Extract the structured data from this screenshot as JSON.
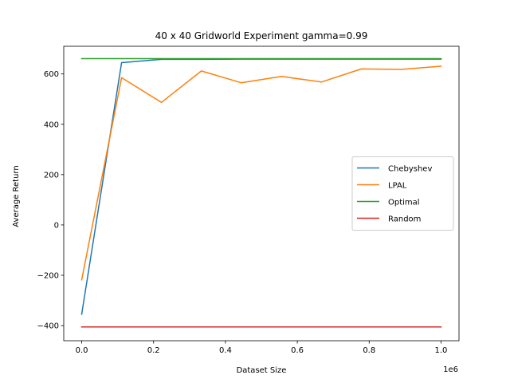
{
  "chart_data": {
    "type": "line",
    "title": "40 x 40 Gridworld Experiment gamma=0.99",
    "xlabel": "Dataset Size",
    "ylabel": "Average Return",
    "x_offset_label": "1e6",
    "xlim": [
      -0.05,
      1.05
    ],
    "ylim": [
      -460,
      710
    ],
    "x_ticks": [
      0.0,
      0.2,
      0.4,
      0.6,
      0.8,
      1.0
    ],
    "x_tick_labels": [
      "0.0",
      "0.2",
      "0.4",
      "0.6",
      "0.8",
      "1.0"
    ],
    "y_ticks": [
      -400,
      -200,
      0,
      200,
      400,
      600
    ],
    "y_tick_labels": [
      "−400",
      "−200",
      "0",
      "200",
      "400",
      "600"
    ],
    "grid": false,
    "legend_position": "center-right",
    "series": [
      {
        "name": "Chebyshev",
        "color": "#1f77b4",
        "x": [
          0.0,
          0.111,
          0.222,
          0.333,
          0.444,
          0.556,
          0.667,
          0.778,
          0.889,
          1.0
        ],
        "y": [
          -355,
          645,
          658,
          658,
          659,
          659,
          659,
          659,
          659,
          659
        ]
      },
      {
        "name": "LPAL",
        "color": "#ff7f0e",
        "x": [
          0.0,
          0.111,
          0.222,
          0.333,
          0.444,
          0.556,
          0.667,
          0.778,
          0.889,
          1.0
        ],
        "y": [
          -218,
          585,
          487,
          612,
          565,
          590,
          568,
          620,
          618,
          631
        ]
      },
      {
        "name": "Optimal",
        "color": "#2ca02c",
        "x": [
          0.0,
          1.0
        ],
        "y": [
          661,
          661
        ]
      },
      {
        "name": "Random",
        "color": "#d62728",
        "x": [
          0.0,
          1.0
        ],
        "y": [
          -405,
          -405
        ]
      }
    ]
  }
}
